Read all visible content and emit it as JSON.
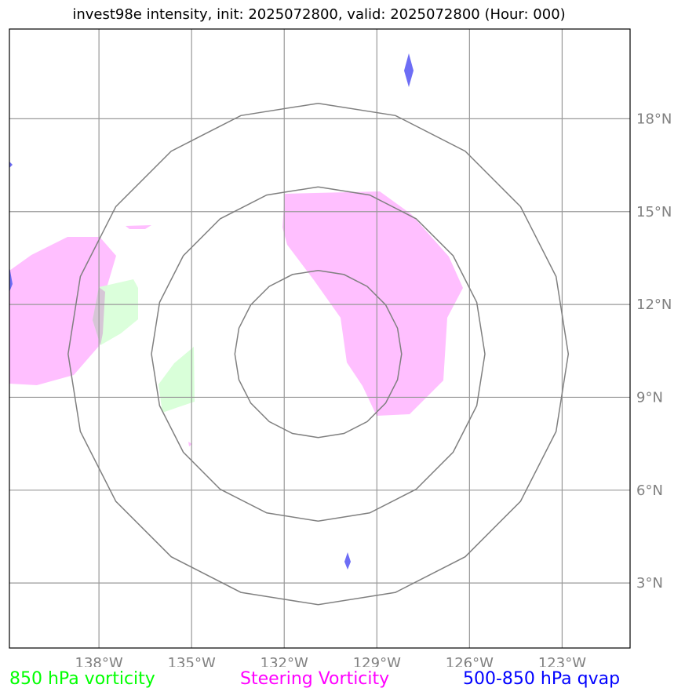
{
  "title": "invest98e intensity, init: 2025072800, valid: 2025072800 (Hour: 000)",
  "map": {
    "lon_range": [
      -140.9,
      -120.8
    ],
    "lat_range": [
      0.9,
      20.9
    ],
    "lon_ticks": [
      -138,
      -135,
      -132,
      -129,
      -126,
      -123
    ],
    "lat_ticks": [
      3,
      6,
      9,
      12,
      15,
      18
    ],
    "lon_labels": [
      "138°W",
      "135°W",
      "132°W",
      "129°W",
      "126°W",
      "123°W"
    ],
    "lat_labels": [
      "3°N",
      "6°N",
      "9°N",
      "12°N",
      "15°N",
      "18°N"
    ],
    "center": {
      "lon": -130.9,
      "lat": 10.4
    },
    "ring_radii_deg": [
      2.7,
      5.4,
      8.1
    ],
    "colors": {
      "grid": "#999999",
      "tick_label": "#808080",
      "ring": "#808080",
      "vort850": "#ccffcc",
      "steering": "#ffa6ff",
      "qvap": "#5a5af2"
    }
  },
  "legend": {
    "vort850": {
      "label": "850 hPa vorticity",
      "color": "#00ff00"
    },
    "steering": {
      "label": "Steering Vorticity",
      "color": "#ff00ff"
    },
    "qvap": {
      "label": "500-850 hPa qvap",
      "color": "#0000ff"
    }
  }
}
